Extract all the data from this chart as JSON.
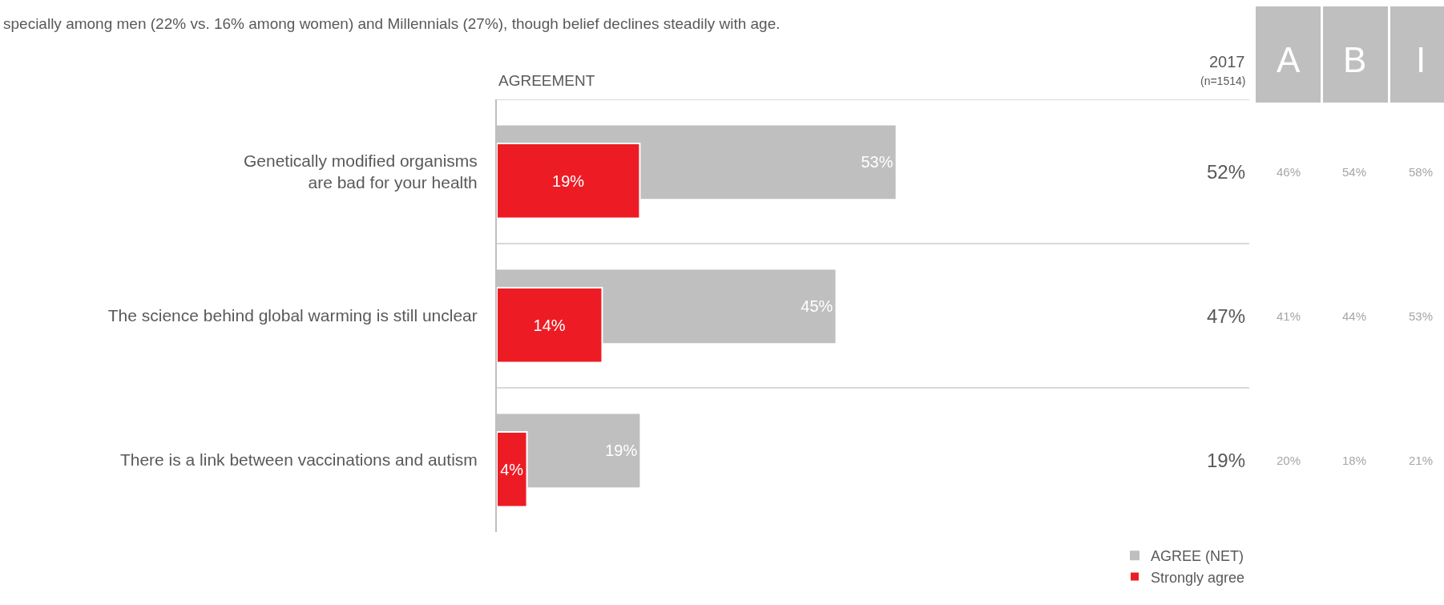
{
  "chart_data": {
    "type": "bar",
    "orientation": "horizontal",
    "subtitle": "specially among men (22% vs. 16% among women) and Millennials (27%), though belief declines steadily with age.",
    "categories": [
      "Genetically modified organisms\nare bad for your health",
      "The science behind global warming is still unclear",
      "There is a link between vaccinations and autism"
    ],
    "series": [
      {
        "name": "AGREE (NET)",
        "color": "#bfbfbf",
        "values": [
          53,
          45,
          19
        ],
        "value_labels": [
          "53%",
          "45%",
          "19%"
        ]
      },
      {
        "name": "Strongly agree",
        "color": "#ed1c24",
        "values": [
          19,
          14,
          4
        ],
        "value_labels": [
          "19%",
          "14%",
          "4%"
        ]
      }
    ],
    "xlim": [
      0,
      100
    ],
    "tick_labels": "y",
    "legend": "bottom right",
    "annotations": [
      "AGREEMENT",
      "2017",
      "(n=1514)",
      "A",
      "B",
      "I",
      "52%",
      "46%",
      "54%",
      "58%",
      "47%",
      "41%",
      "44%",
      "53%",
      "19%",
      "20%",
      "18%",
      "21%"
    ]
  }
}
